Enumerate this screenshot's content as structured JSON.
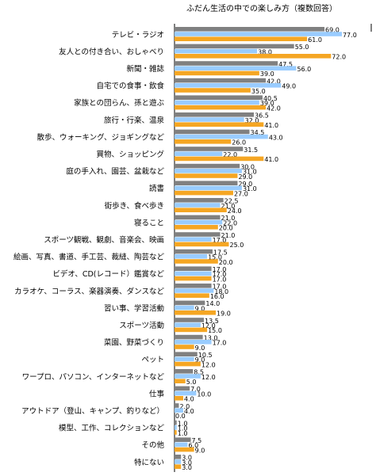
{
  "chart_data": {
    "type": "bar",
    "orientation": "horizontal",
    "title": "ふだん生活の中での楽しみ方（複数回答）",
    "categories": [
      "テレビ・ラジオ",
      "友人との付き合い、おしゃべり",
      "新聞・雑誌",
      "自宅での食事・飲食",
      "家族との団らん、孫と遊ぶ",
      "旅行・行楽、温泉",
      "散歩、ウォーキング、ジョギングなど",
      "買物、ショッピング",
      "庭の手入れ、園芸、盆栽など",
      "読書",
      "街歩き、食べ歩き",
      "寝ること",
      "スポーツ観戦、観劇、音楽会、映画",
      "絵画、写真、書道、手工芸、裁縫、陶芸など",
      "ビデオ、CD(レコード）鑑賞など",
      "カラオケ、コーラス、楽器演奏、ダンスなど",
      "習い事、学習活動",
      "スポーツ活動",
      "菜園、野菜づくり",
      "ペット",
      "ワープロ、パソコン、インターネットなど",
      "仕事",
      "アウトドア（登山、キャンプ、釣りなど）",
      "模型、工作、コレクションなど",
      "その他",
      "特にない"
    ],
    "series": [
      {
        "color": "#808080",
        "values": [
          69,
          55,
          47.5,
          42,
          40.5,
          36.5,
          34.5,
          31.5,
          30,
          29,
          22.5,
          21,
          21,
          17.5,
          17,
          17,
          14,
          13.5,
          13,
          10.5,
          8.5,
          7,
          2,
          1,
          7.5,
          3
        ],
        "value_labels": [
          "69.0",
          "55.0",
          "47.5",
          "42.0",
          "40.5",
          "36.5",
          "34.5",
          "31.5",
          "30.0",
          "29.0",
          "22.5",
          "21.0",
          "21.0",
          "17.5",
          "17.0",
          "17.0",
          "14.0",
          "13.5",
          "13.0",
          "10.5",
          "8.5",
          "7.0",
          "2.0",
          "1.0",
          "7.5",
          "3.0"
        ]
      },
      {
        "color": "#99ccff",
        "values": [
          77,
          38,
          56,
          49,
          39,
          32,
          43,
          22,
          31,
          31,
          21,
          22,
          17,
          15,
          17,
          18,
          9,
          12,
          17,
          9,
          12,
          10,
          4,
          1,
          6,
          3
        ],
        "value_labels": [
          "77.0",
          "38.0",
          "56.0",
          "49.0",
          "39.0",
          "32.0",
          "43.0",
          "22.0",
          "31.0",
          "31.0",
          "21.0",
          "22.0",
          "17.0",
          "15.0",
          "17.0",
          "18.0",
          "9.0",
          "12.0",
          "17.0",
          "9.0",
          "12.0",
          "10.0",
          "4.0",
          "1.0",
          "6.0",
          "3.0"
        ]
      },
      {
        "color": "#f5a623",
        "values": [
          61,
          72,
          39,
          35,
          42,
          41,
          26,
          41,
          29,
          27,
          24,
          20,
          25,
          20,
          17,
          16,
          19,
          15,
          9,
          12,
          5,
          4,
          0,
          1,
          9,
          3
        ],
        "value_labels": [
          "61.0",
          "72.0",
          "39.0",
          "35.0",
          "42.0",
          "41.0",
          "26.0",
          "41.0",
          "29.0",
          "27.0",
          "24.0",
          "20.0",
          "25.0",
          "20.0",
          "17.0",
          "16.0",
          "19.0",
          "15.0",
          "9.0",
          "12.0",
          "5.0",
          "4.0",
          "0.0",
          "1.0",
          "9.0",
          "3.0"
        ]
      }
    ]
  }
}
